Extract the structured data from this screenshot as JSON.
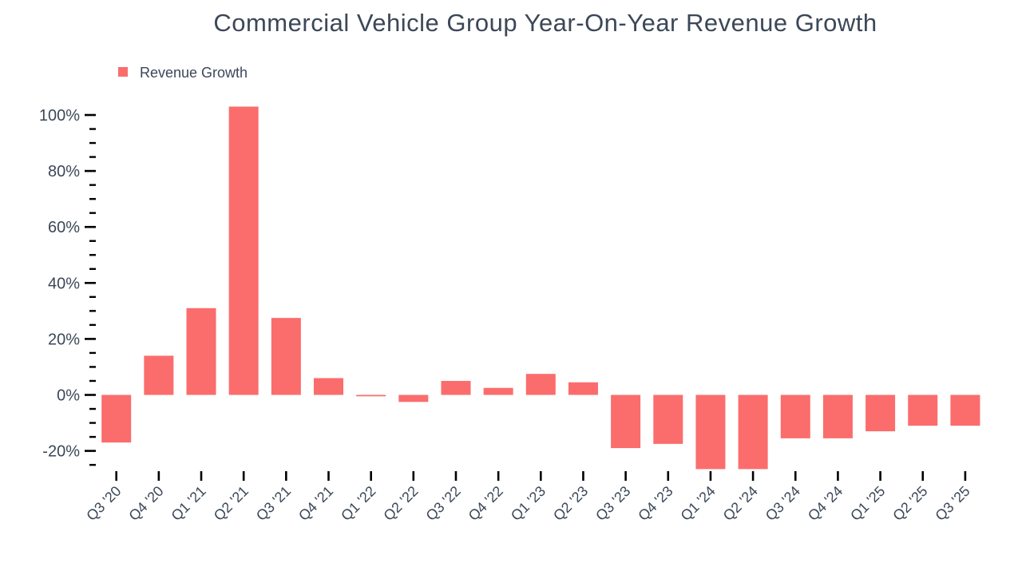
{
  "title": "Commercial Vehicle Group Year-On-Year Revenue Growth",
  "legend": {
    "label": "Revenue Growth"
  },
  "colors": {
    "bar": "#fa6d6c",
    "text": "#3c4758",
    "axis_tick": "#000000",
    "background": "#ffffff"
  },
  "chart_data": {
    "type": "bar",
    "title": "Commercial Vehicle Group Year-On-Year Revenue Growth",
    "unit": "%",
    "xlabel": "",
    "ylabel": "",
    "grid": false,
    "legend_position": "top-left",
    "legend_entries": [
      "Revenue Growth"
    ],
    "categories": [
      "Q3 '20",
      "Q4 '20",
      "Q1 '21",
      "Q2 '21",
      "Q3 '21",
      "Q4 '21",
      "Q1 '22",
      "Q2 '22",
      "Q3 '22",
      "Q4 '22",
      "Q1 '23",
      "Q2 '23",
      "Q3 '23",
      "Q4 '23",
      "Q1 '24",
      "Q2 '24",
      "Q3 '24",
      "Q4 '24",
      "Q1 '25",
      "Q2 '25",
      "Q3 '25"
    ],
    "series": [
      {
        "name": "Revenue Growth",
        "values": [
          -17,
          14,
          31,
          103,
          27.5,
          6,
          -0.5,
          -2.5,
          5,
          2.5,
          7.5,
          4.5,
          -19,
          -17.5,
          -26.5,
          -26.5,
          -15.5,
          -15.5,
          -13,
          -11,
          -11
        ]
      }
    ],
    "y_axis": {
      "major_tick_values": [
        100,
        80,
        60,
        40,
        20,
        0,
        -20
      ],
      "major_tick_labels": [
        "100%",
        "80%",
        "60%",
        "40%",
        "20%",
        "0%",
        "-20%"
      ],
      "minor_tick_step": 5,
      "minor_tick_min": -25,
      "minor_tick_max": 95
    },
    "ylim": [
      -28,
      106
    ]
  }
}
